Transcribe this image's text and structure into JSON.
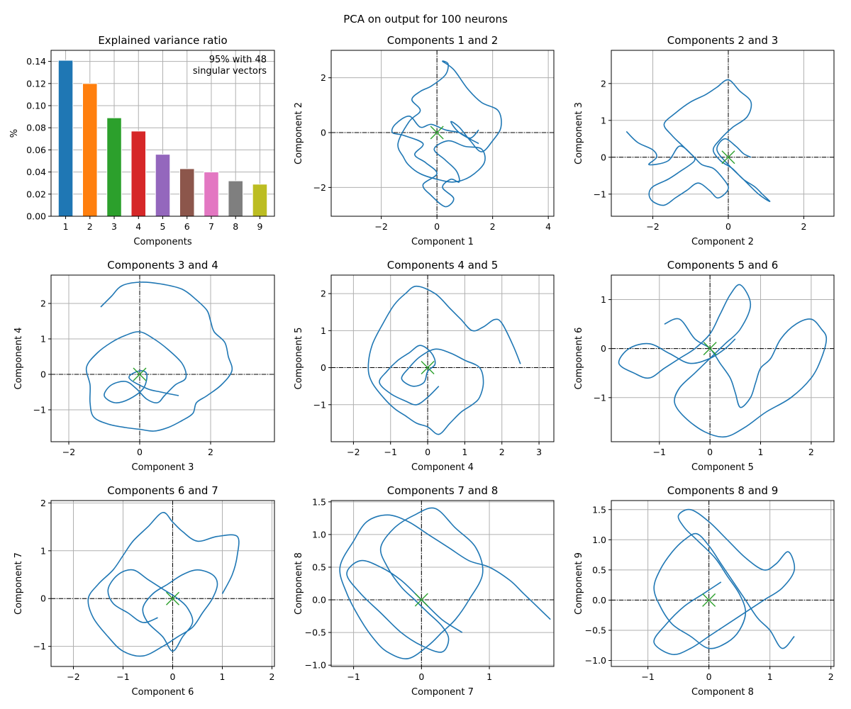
{
  "suptitle": "PCA on output for 100 neurons",
  "chart_data": [
    {
      "type": "bar",
      "title": "Explained variance ratio",
      "xlabel": "Components",
      "ylabel": "%",
      "categories": [
        "1",
        "2",
        "3",
        "4",
        "5",
        "6",
        "7",
        "8",
        "9"
      ],
      "values": [
        0.141,
        0.12,
        0.089,
        0.077,
        0.056,
        0.043,
        0.04,
        0.032,
        0.029
      ],
      "colors": [
        "#1f77b4",
        "#ff7f0e",
        "#2ca02c",
        "#d62728",
        "#9467bd",
        "#8c564b",
        "#e377c2",
        "#7f7f7f",
        "#bcbd22"
      ],
      "ylim": [
        0,
        0.15
      ],
      "yticks": [
        "0.00",
        "0.02",
        "0.04",
        "0.06",
        "0.08",
        "0.10",
        "0.12",
        "0.14"
      ],
      "annotation": [
        "95% with 48",
        "singular vectors"
      ],
      "grid": true
    },
    {
      "type": "line",
      "title": "Components 1 and 2",
      "xlabel": "Component 1",
      "ylabel": "Component 2",
      "xlim": [
        -3.8,
        4.2
      ],
      "ylim": [
        -3.05,
        3.0
      ],
      "xticks": [
        -2,
        0,
        2,
        4
      ],
      "yticks": [
        -2,
        0,
        2
      ],
      "line_color": "#1f77b4",
      "marker": {
        "symbol": "x",
        "color": "#2ca02c",
        "x": 0,
        "y": 0
      },
      "x": [
        1.5,
        1.2,
        0.8,
        0.3,
        -0.2,
        -0.6,
        -1.0,
        -1.5,
        -1.6,
        -1.2,
        -0.5,
        -0.8,
        -0.4,
        0.0,
        -0.5,
        -0.2,
        0.3,
        0.6,
        0.2,
        0.5,
        0.8,
        0.7,
        0.3,
        -0.1,
        0.4,
        1.0,
        1.6,
        1.7,
        1.2,
        0.6,
        0.0,
        -0.6,
        -1.0,
        -1.2,
        -1.4,
        -1.0,
        -0.6,
        -0.9,
        -0.6,
        -0.2,
        0.3,
        0.4,
        0.2,
        0.6,
        1.1,
        1.6,
        2.2,
        2.3,
        2.0,
        1.6,
        1.2,
        0.8,
        0.5,
        0.8,
        1.5
      ],
      "y": [
        0.1,
        -0.2,
        0.0,
        0.1,
        0.3,
        0.2,
        0.6,
        0.3,
        0.0,
        -0.1,
        -0.4,
        -0.8,
        -1.1,
        -1.5,
        -1.9,
        -2.3,
        -2.7,
        -2.4,
        -2.0,
        -1.7,
        -1.8,
        -1.4,
        -1.0,
        -0.6,
        -0.3,
        -0.5,
        -0.6,
        -1.1,
        -1.6,
        -1.8,
        -1.7,
        -1.5,
        -1.2,
        -0.9,
        -0.4,
        0.4,
        0.8,
        1.2,
        1.5,
        1.7,
        2.1,
        2.5,
        2.6,
        2.3,
        1.6,
        1.1,
        0.8,
        0.2,
        -0.3,
        -0.7,
        -0.3,
        0.2,
        0.4,
        0.0,
        -0.4
      ]
    },
    {
      "type": "line",
      "title": "Components 2 and 3",
      "xlabel": "Component 2",
      "ylabel": "Component 3",
      "xlim": [
        -3.1,
        2.8
      ],
      "ylim": [
        -1.6,
        2.9
      ],
      "xticks": [
        -2,
        0,
        2
      ],
      "yticks": [
        -1,
        0,
        1,
        2
      ],
      "line_color": "#1f77b4",
      "marker": {
        "symbol": "x",
        "color": "#2ca02c",
        "x": 0,
        "y": 0
      },
      "x": [
        -2.7,
        -2.4,
        -2.0,
        -1.9,
        -2.1,
        -1.6,
        -1.3,
        -1.0,
        -0.9,
        -1.3,
        -1.6,
        -2.0,
        -2.1,
        -2.0,
        -1.7,
        -1.4,
        -1.1,
        -0.8,
        -0.5,
        -0.3,
        -0.1,
        0.0,
        -0.2,
        -0.4,
        -0.7,
        -0.9,
        -1.2,
        -1.5,
        -1.7,
        -1.4,
        -1.0,
        -0.6,
        -0.3,
        0.0,
        0.3,
        0.6,
        0.5,
        0.1,
        -0.2,
        -0.4,
        -0.2,
        0.1,
        0.4,
        0.7,
        0.9,
        1.1,
        0.8,
        0.4,
        0.0,
        -0.3,
        -0.1,
        0.2,
        0.4,
        0.6
      ],
      "y": [
        0.7,
        0.4,
        0.2,
        0.0,
        -0.2,
        -0.1,
        0.3,
        0.1,
        -0.1,
        -0.4,
        -0.6,
        -0.8,
        -1.0,
        -1.2,
        -1.3,
        -1.1,
        -0.9,
        -0.7,
        -0.9,
        -1.1,
        -1.0,
        -0.8,
        -0.5,
        -0.3,
        -0.2,
        0.0,
        0.3,
        0.6,
        0.9,
        1.2,
        1.5,
        1.7,
        1.9,
        2.1,
        1.8,
        1.5,
        1.1,
        0.8,
        0.5,
        0.2,
        -0.1,
        -0.3,
        -0.6,
        -0.8,
        -1.0,
        -1.2,
        -1.0,
        -0.6,
        -0.2,
        0.2,
        0.5,
        0.3,
        0.1,
        0.0
      ]
    },
    {
      "type": "line",
      "title": "Components 3 and 4",
      "xlabel": "Component 3",
      "ylabel": "Component 4",
      "xlim": [
        -2.5,
        3.8
      ],
      "ylim": [
        -1.9,
        2.8
      ],
      "xticks": [
        -2,
        0,
        2
      ],
      "yticks": [
        -1,
        0,
        1,
        2
      ],
      "line_color": "#1f77b4",
      "marker": {
        "symbol": "x",
        "color": "#2ca02c",
        "x": 0,
        "y": 0
      },
      "x": [
        -1.1,
        -0.8,
        -0.5,
        0.0,
        0.6,
        1.2,
        1.6,
        1.9,
        2.0,
        2.1,
        2.4,
        2.5,
        2.6,
        2.3,
        1.9,
        1.6,
        1.5,
        1.2,
        0.8,
        0.4,
        0.0,
        -0.4,
        -0.9,
        -1.3,
        -1.4,
        -1.4,
        -1.5,
        -1.2,
        -0.8,
        -0.4,
        0.0,
        0.4,
        0.8,
        1.2,
        1.3,
        1.0,
        0.7,
        0.5,
        0.2,
        -0.1,
        -0.4,
        -0.8,
        -1.0,
        -0.7,
        -0.3,
        0.1,
        0.2,
        0.0,
        -0.3,
        0.2,
        0.6,
        1.1
      ],
      "y": [
        1.9,
        2.2,
        2.5,
        2.6,
        2.55,
        2.4,
        2.1,
        1.8,
        1.5,
        1.2,
        0.9,
        0.5,
        0.1,
        -0.3,
        -0.6,
        -0.8,
        -1.1,
        -1.3,
        -1.5,
        -1.6,
        -1.55,
        -1.5,
        -1.4,
        -1.2,
        -0.8,
        -0.3,
        0.2,
        0.6,
        0.9,
        1.1,
        1.2,
        1.0,
        0.7,
        0.3,
        -0.1,
        -0.3,
        -0.6,
        -0.8,
        -0.7,
        -0.4,
        -0.2,
        -0.3,
        -0.6,
        -0.8,
        -0.7,
        -0.4,
        0.0,
        0.1,
        -0.1,
        -0.4,
        -0.5,
        -0.6
      ]
    },
    {
      "type": "line",
      "title": "Components 4 and 5",
      "xlabel": "Component 4",
      "ylabel": "Component 5",
      "xlim": [
        -2.6,
        3.4
      ],
      "ylim": [
        -2.0,
        2.5
      ],
      "xticks": [
        -2,
        -1,
        0,
        1,
        2,
        3
      ],
      "yticks": [
        -1,
        0,
        1,
        2
      ],
      "line_color": "#1f77b4",
      "marker": {
        "symbol": "x",
        "color": "#2ca02c",
        "x": 0,
        "y": 0
      },
      "x": [
        2.5,
        2.3,
        2.0,
        1.8,
        1.5,
        1.2,
        0.9,
        0.6,
        0.2,
        -0.3,
        -0.6,
        -0.9,
        -1.2,
        -1.5,
        -1.6,
        -1.5,
        -1.2,
        -0.9,
        -0.6,
        -0.3,
        0.0,
        0.3,
        0.6,
        0.9,
        1.2,
        1.4,
        1.5,
        1.4,
        1.0,
        0.6,
        0.2,
        -0.2,
        -0.5,
        -0.7,
        -0.4,
        -0.1,
        0.0,
        0.2,
        0.1,
        -0.2,
        -0.5,
        -0.8,
        -1.1,
        -1.3,
        -1.0,
        -0.6,
        -0.3,
        0.0,
        0.3
      ],
      "y": [
        0.1,
        0.6,
        1.2,
        1.3,
        1.1,
        1.0,
        1.3,
        1.6,
        2.0,
        2.2,
        2.0,
        1.7,
        1.2,
        0.6,
        0.0,
        -0.4,
        -0.8,
        -1.1,
        -1.3,
        -1.5,
        -1.6,
        -1.8,
        -1.5,
        -1.2,
        -1.0,
        -0.8,
        -0.4,
        0.0,
        0.2,
        0.4,
        0.5,
        0.3,
        0.0,
        -0.3,
        -0.5,
        -0.4,
        -0.1,
        0.1,
        0.4,
        0.6,
        0.4,
        0.2,
        -0.1,
        -0.4,
        -0.7,
        -0.9,
        -1.0,
        -0.8,
        -0.5
      ]
    },
    {
      "type": "line",
      "title": "Components 5 and 6",
      "xlabel": "Component 5",
      "ylabel": "Component 6",
      "xlim": [
        -1.95,
        2.45
      ],
      "ylim": [
        -1.9,
        1.5
      ],
      "xticks": [
        -1,
        0,
        1,
        2
      ],
      "yticks": [
        -1,
        0,
        1
      ],
      "line_color": "#1f77b4",
      "marker": {
        "symbol": "x",
        "color": "#2ca02c",
        "x": 0,
        "y": 0
      },
      "x": [
        -0.9,
        -0.6,
        -0.3,
        0.0,
        0.2,
        0.4,
        0.5,
        0.6,
        0.8,
        0.9,
        1.0,
        1.2,
        1.4,
        1.7,
        2.0,
        2.2,
        2.3,
        2.2,
        2.0,
        1.6,
        1.1,
        0.7,
        0.3,
        -0.1,
        -0.5,
        -0.7,
        -0.6,
        -0.3,
        -0.1,
        0.1,
        0.3,
        0.6,
        0.8,
        0.6,
        0.4,
        0.2,
        0.0,
        -0.3,
        -0.6,
        -0.9,
        -1.2,
        -1.5,
        -1.8,
        -1.6,
        -1.2,
        -0.8,
        -0.4,
        0.0,
        0.3,
        0.5
      ],
      "y": [
        0.5,
        0.6,
        0.2,
        0.0,
        -0.3,
        -0.6,
        -0.9,
        -1.2,
        -1.0,
        -0.7,
        -0.4,
        -0.2,
        0.2,
        0.5,
        0.6,
        0.4,
        0.2,
        -0.2,
        -0.6,
        -1.0,
        -1.3,
        -1.6,
        -1.8,
        -1.7,
        -1.4,
        -1.1,
        -0.8,
        -0.5,
        -0.3,
        -0.1,
        0.1,
        0.4,
        0.9,
        1.3,
        1.1,
        0.7,
        0.3,
        0.0,
        -0.2,
        -0.4,
        -0.6,
        -0.5,
        -0.3,
        0.0,
        0.1,
        -0.1,
        -0.3,
        -0.2,
        0.0,
        0.2
      ]
    },
    {
      "type": "line",
      "title": "Components 6 and 7",
      "xlabel": "Component 6",
      "ylabel": "Component 7",
      "xlim": [
        -2.45,
        2.05
      ],
      "ylim": [
        -1.42,
        2.05
      ],
      "xticks": [
        -2,
        -1,
        0,
        1,
        2
      ],
      "yticks": [
        -1,
        0,
        1,
        2
      ],
      "line_color": "#1f77b4",
      "marker": {
        "symbol": "x",
        "color": "#2ca02c",
        "x": 0,
        "y": 0
      },
      "x": [
        1.0,
        1.2,
        1.3,
        1.3,
        0.9,
        0.5,
        0.2,
        0.0,
        -0.2,
        -0.5,
        -0.8,
        -1.0,
        -1.2,
        -1.5,
        -1.7,
        -1.6,
        -1.3,
        -1.0,
        -0.6,
        -0.2,
        0.1,
        0.4,
        0.6,
        0.8,
        0.9,
        0.8,
        0.5,
        0.2,
        -0.1,
        -0.4,
        -0.6,
        -0.5,
        -0.2,
        0.0,
        0.2,
        0.4,
        0.3,
        0.1,
        -0.2,
        -0.5,
        -0.8,
        -1.1,
        -1.3,
        -1.2,
        -0.9,
        -0.6,
        -0.3
      ],
      "y": [
        0.1,
        0.5,
        0.9,
        1.3,
        1.3,
        1.2,
        1.4,
        1.6,
        1.8,
        1.5,
        1.2,
        0.9,
        0.6,
        0.3,
        0.0,
        -0.4,
        -0.8,
        -1.1,
        -1.2,
        -1.0,
        -0.8,
        -0.6,
        -0.3,
        0.0,
        0.3,
        0.5,
        0.6,
        0.5,
        0.3,
        0.1,
        -0.2,
        -0.5,
        -0.8,
        -1.1,
        -0.8,
        -0.5,
        -0.2,
        0.0,
        0.2,
        0.4,
        0.6,
        0.5,
        0.2,
        -0.1,
        -0.3,
        -0.5,
        -0.4
      ]
    },
    {
      "type": "line",
      "title": "Components 7 and 8",
      "xlabel": "Component 7",
      "ylabel": "Component 8",
      "xlim": [
        -1.33,
        1.95
      ],
      "ylim": [
        -1.02,
        1.52
      ],
      "xticks": [
        -1,
        0,
        1
      ],
      "yticks": [
        -1.0,
        -0.5,
        0.0,
        0.5,
        1.0,
        1.5
      ],
      "line_color": "#1f77b4",
      "marker": {
        "symbol": "x",
        "color": "#2ca02c",
        "x": 0,
        "y": 0
      },
      "x": [
        1.9,
        1.7,
        1.5,
        1.3,
        1.0,
        0.7,
        0.4,
        0.1,
        -0.2,
        -0.5,
        -0.8,
        -1.0,
        -1.2,
        -1.1,
        -0.9,
        -0.7,
        -0.5,
        -0.2,
        0.1,
        0.3,
        0.5,
        0.7,
        0.9,
        0.8,
        0.5,
        0.2,
        -0.1,
        -0.4,
        -0.6,
        -0.5,
        -0.3,
        -0.1,
        0.1,
        0.3,
        0.4,
        0.3,
        0.0,
        -0.3,
        -0.6,
        -0.9,
        -1.1,
        -0.9,
        -0.6,
        -0.3,
        0.0,
        0.3,
        0.6
      ],
      "y": [
        -0.3,
        -0.1,
        0.1,
        0.3,
        0.5,
        0.6,
        0.8,
        1.0,
        1.2,
        1.3,
        1.2,
        0.9,
        0.5,
        0.1,
        -0.3,
        -0.6,
        -0.8,
        -0.9,
        -0.7,
        -0.5,
        -0.3,
        0.0,
        0.4,
        0.8,
        1.1,
        1.4,
        1.3,
        1.1,
        0.8,
        0.5,
        0.2,
        0.0,
        -0.2,
        -0.4,
        -0.6,
        -0.8,
        -0.7,
        -0.5,
        -0.2,
        0.1,
        0.4,
        0.6,
        0.5,
        0.3,
        0.0,
        -0.3,
        -0.5
      ]
    },
    {
      "type": "line",
      "title": "Components 8 and 9",
      "xlabel": "Component 8",
      "ylabel": "Component 9",
      "xlim": [
        -1.6,
        2.05
      ],
      "ylim": [
        -1.1,
        1.65
      ],
      "xticks": [
        -1,
        0,
        1,
        2
      ],
      "yticks": [
        -1.0,
        -0.5,
        0.0,
        0.5,
        1.0,
        1.5
      ],
      "line_color": "#1f77b4",
      "marker": {
        "symbol": "x",
        "color": "#2ca02c",
        "x": 0,
        "y": 0
      },
      "x": [
        1.4,
        1.2,
        1.0,
        0.8,
        0.6,
        0.4,
        0.2,
        0.0,
        -0.2,
        -0.4,
        -0.6,
        -0.8,
        -0.9,
        -0.8,
        -0.6,
        -0.3,
        0.0,
        0.3,
        0.5,
        0.6,
        0.5,
        0.3,
        0.1,
        -0.2,
        -0.4,
        -0.5,
        -0.3,
        0.0,
        0.3,
        0.6,
        0.9,
        1.1,
        1.3,
        1.4,
        1.2,
        0.9,
        0.6,
        0.3,
        0.0,
        -0.3,
        -0.6,
        -0.9,
        -0.7,
        -0.4,
        -0.1,
        0.2
      ],
      "y": [
        -0.6,
        -0.8,
        -0.5,
        -0.3,
        0.0,
        0.3,
        0.6,
        0.9,
        1.1,
        1.0,
        0.8,
        0.5,
        0.2,
        -0.1,
        -0.4,
        -0.6,
        -0.8,
        -0.7,
        -0.5,
        -0.2,
        0.1,
        0.4,
        0.7,
        1.0,
        1.2,
        1.4,
        1.5,
        1.3,
        1.0,
        0.7,
        0.5,
        0.6,
        0.8,
        0.5,
        0.2,
        0.0,
        -0.2,
        -0.4,
        -0.6,
        -0.8,
        -0.9,
        -0.7,
        -0.4,
        -0.1,
        0.1,
        0.3
      ]
    }
  ]
}
